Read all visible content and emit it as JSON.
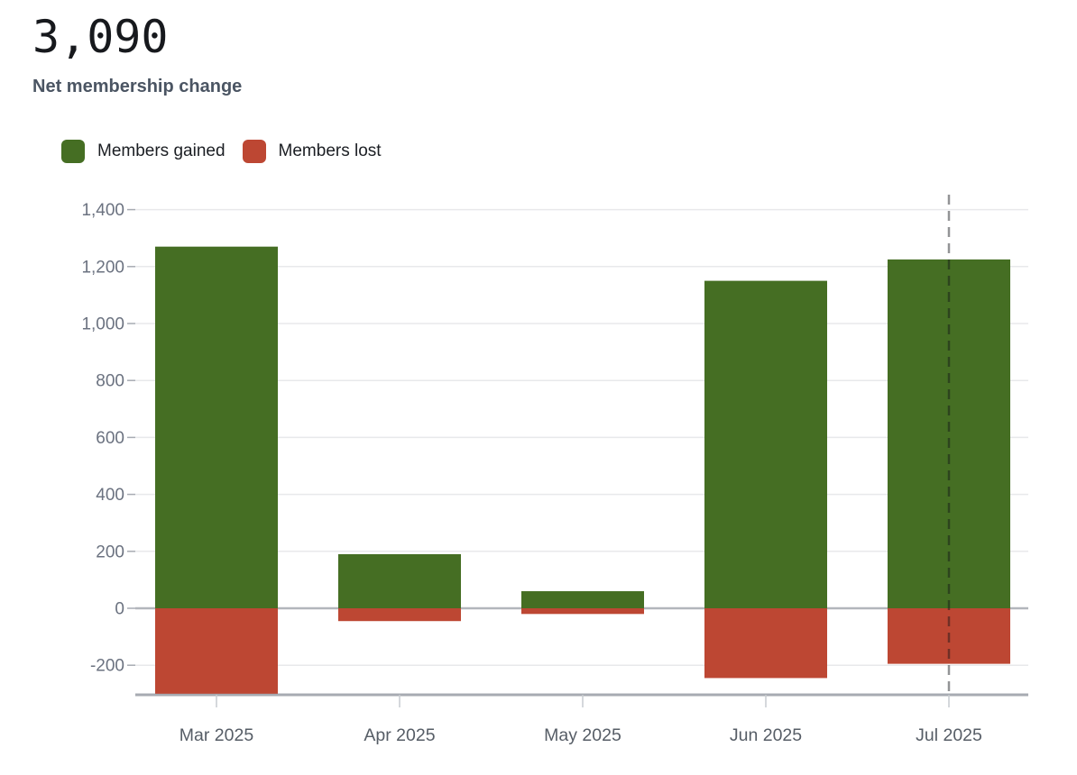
{
  "header": {
    "value": "3,090",
    "subtitle": "Net membership change"
  },
  "legend": {
    "items": [
      {
        "label": "Members gained",
        "color": "#456e23"
      },
      {
        "label": "Members lost",
        "color": "#bd4733"
      }
    ]
  },
  "chart_data": {
    "type": "bar",
    "title": "Net membership change",
    "net_total": 3090,
    "categories": [
      "Mar 2025",
      "Apr 2025",
      "May 2025",
      "Jun 2025",
      "Jul 2025"
    ],
    "series": [
      {
        "name": "Members gained",
        "color": "#456e23",
        "values": [
          1270,
          190,
          60,
          1150,
          1225
        ]
      },
      {
        "name": "Members lost",
        "color": "#bd4733",
        "values": [
          -300,
          -45,
          -20,
          -245,
          -195
        ]
      }
    ],
    "ylim": [
      -303,
      1400
    ],
    "yticks": [
      {
        "value": 1400,
        "label": "1,400"
      },
      {
        "value": 1200,
        "label": "1,200"
      },
      {
        "value": 1000,
        "label": "1,000"
      },
      {
        "value": 800,
        "label": "800"
      },
      {
        "value": 600,
        "label": "600"
      },
      {
        "value": 400,
        "label": "400"
      },
      {
        "value": 200,
        "label": "200"
      },
      {
        "value": 0,
        "label": "0"
      },
      {
        "value": -200,
        "label": "-200"
      }
    ],
    "grid": true,
    "legend_position": "top-left",
    "annotations": [
      {
        "type": "dashed-vertical-line",
        "x_category": "Jul 2025"
      }
    ]
  },
  "style": {
    "grid_color": "#e8e9eb",
    "zero_line_color": "#b2b6bc",
    "axis_line_color": "#a7abb2",
    "x_tick_color": "#c7cbd0",
    "y_tick_color": "#a7abb2",
    "y_label_color": "#6b7280",
    "x_label_color": "#565d66",
    "dashed_line_color": "rgba(15,18,22,0.45)"
  }
}
